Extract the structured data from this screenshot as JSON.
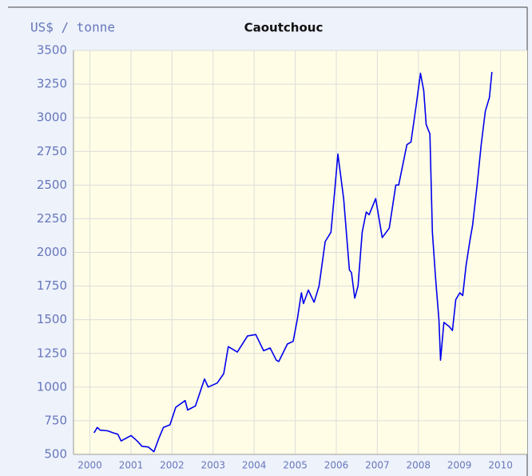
{
  "chart_data": {
    "type": "line",
    "title": "Caoutchouc",
    "ylabel": "US$ / tonne",
    "x": [
      2000.1,
      2000.18,
      2000.25,
      2000.43,
      2000.57,
      2000.68,
      2000.76,
      2000.88,
      2001.0,
      2001.15,
      2001.27,
      2001.42,
      2001.56,
      2001.68,
      2001.79,
      2001.95,
      2002.09,
      2002.32,
      2002.38,
      2002.57,
      2002.79,
      2002.88,
      2003.1,
      2003.26,
      2003.37,
      2003.59,
      2003.84,
      2004.04,
      2004.23,
      2004.39,
      2004.54,
      2004.6,
      2004.81,
      2004.95,
      2005.05,
      2005.15,
      2005.2,
      2005.32,
      2005.46,
      2005.58,
      2005.73,
      2005.87,
      2005.96,
      2006.04,
      2006.18,
      2006.32,
      2006.37,
      2006.45,
      2006.53,
      2006.63,
      2006.73,
      2006.8,
      2006.96,
      2007.12,
      2007.29,
      2007.45,
      2007.52,
      2007.72,
      2007.82,
      2007.95,
      2008.05,
      2008.13,
      2008.19,
      2008.28,
      2008.34,
      2008.42,
      2008.5,
      2008.54,
      2008.62,
      2008.75,
      2008.83,
      2008.91,
      2009.01,
      2009.08,
      2009.16,
      2009.26,
      2009.32,
      2009.43,
      2009.53,
      2009.63,
      2009.73,
      2009.79
    ],
    "series": [
      {
        "name": "Caoutchouc",
        "color": "#0000ee",
        "values": [
          660,
          700,
          680,
          675,
          660,
          650,
          600,
          620,
          640,
          600,
          560,
          555,
          520,
          620,
          700,
          720,
          850,
          900,
          830,
          860,
          1060,
          1000,
          1030,
          1100,
          1300,
          1260,
          1380,
          1390,
          1270,
          1290,
          1200,
          1190,
          1320,
          1340,
          1500,
          1700,
          1620,
          1720,
          1630,
          1750,
          2080,
          2150,
          2450,
          2730,
          2400,
          1870,
          1850,
          1660,
          1750,
          2150,
          2300,
          2280,
          2400,
          2110,
          2180,
          2500,
          2500,
          2800,
          2820,
          3100,
          3330,
          3200,
          2950,
          2880,
          2150,
          1800,
          1500,
          1200,
          1480,
          1450,
          1420,
          1650,
          1700,
          1680,
          1900,
          2100,
          2200,
          2500,
          2800,
          3050,
          3150,
          3340
        ]
      }
    ],
    "xlim": [
      1999.6,
      2010.65
    ],
    "xticks": [
      2000,
      2001,
      2002,
      2003,
      2004,
      2005,
      2006,
      2007,
      2008,
      2009,
      2010
    ],
    "ylim": [
      500,
      3500
    ],
    "yticks": [
      500,
      750,
      1000,
      1250,
      1500,
      1750,
      2000,
      2250,
      2500,
      2750,
      3000,
      3250,
      3500
    ],
    "grid": true
  }
}
